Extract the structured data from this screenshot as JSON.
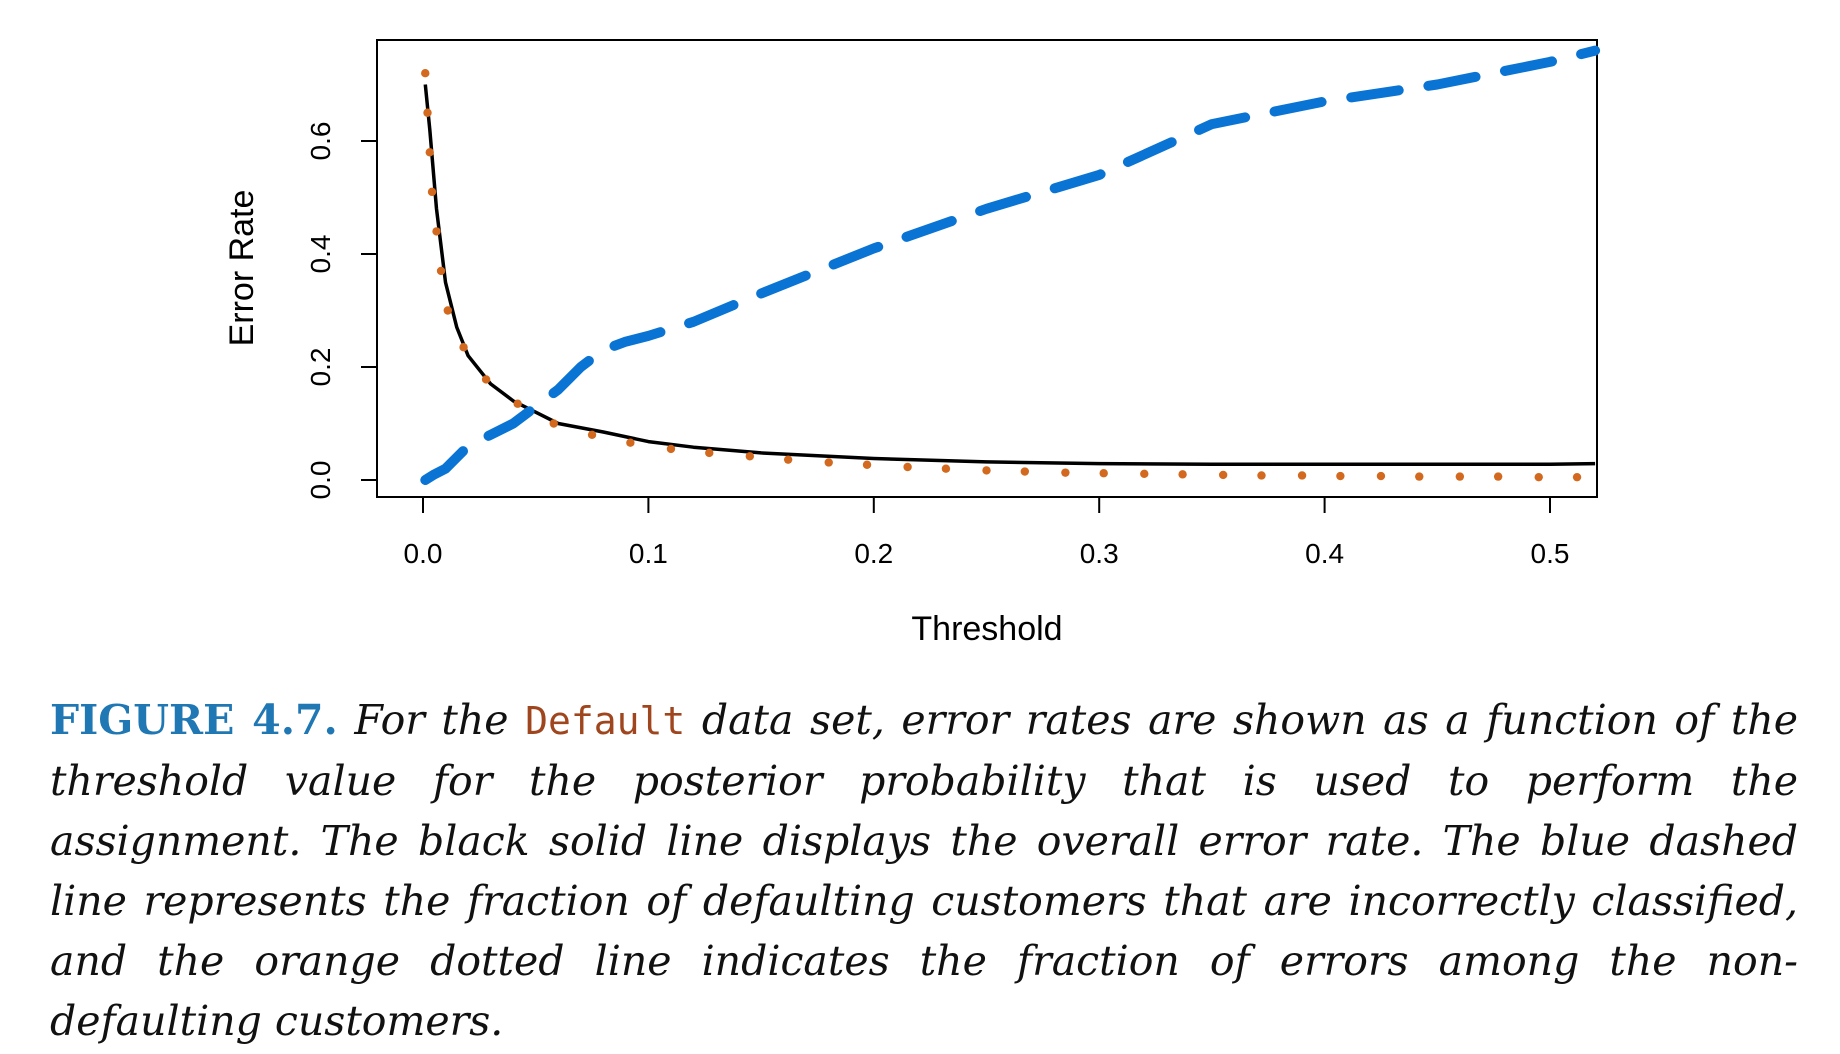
{
  "chart_data": {
    "type": "line",
    "xlabel": "Threshold",
    "ylabel": "Error Rate",
    "xlim": [
      0.0,
      0.52
    ],
    "ylim": [
      0.0,
      0.76
    ],
    "xticks": [
      "0.0",
      "0.1",
      "0.2",
      "0.3",
      "0.4",
      "0.5"
    ],
    "yticks": [
      "0.0",
      "0.2",
      "0.4",
      "0.6"
    ],
    "grid": false,
    "series": [
      {
        "style": "solid",
        "color": "#000000",
        "x": [
          0.001,
          0.003,
          0.006,
          0.01,
          0.015,
          0.02,
          0.03,
          0.04,
          0.05,
          0.06,
          0.08,
          0.1,
          0.12,
          0.15,
          0.2,
          0.25,
          0.3,
          0.35,
          0.4,
          0.45,
          0.5,
          0.52
        ],
        "y": [
          0.7,
          0.62,
          0.48,
          0.35,
          0.27,
          0.22,
          0.17,
          0.14,
          0.12,
          0.1,
          0.085,
          0.068,
          0.058,
          0.048,
          0.038,
          0.032,
          0.029,
          0.028,
          0.028,
          0.028,
          0.028,
          0.029
        ]
      },
      {
        "style": "dashed",
        "color": "#0a74d4",
        "x": [
          0.001,
          0.005,
          0.01,
          0.015,
          0.02,
          0.03,
          0.04,
          0.05,
          0.06,
          0.07,
          0.08,
          0.09,
          0.1,
          0.12,
          0.15,
          0.2,
          0.25,
          0.3,
          0.35,
          0.4,
          0.45,
          0.5,
          0.52
        ],
        "y": [
          0.0,
          0.01,
          0.02,
          0.04,
          0.06,
          0.08,
          0.1,
          0.13,
          0.16,
          0.2,
          0.23,
          0.245,
          0.255,
          0.28,
          0.33,
          0.41,
          0.48,
          0.54,
          0.63,
          0.67,
          0.7,
          0.74,
          0.76
        ]
      },
      {
        "style": "dotted",
        "color": "#d2691e",
        "x": [
          0.001,
          0.002,
          0.003,
          0.004,
          0.006,
          0.008,
          0.011,
          0.018,
          0.028,
          0.042,
          0.058,
          0.075,
          0.092,
          0.11,
          0.127,
          0.145,
          0.162,
          0.18,
          0.197,
          0.215,
          0.232,
          0.25,
          0.267,
          0.285,
          0.302,
          0.32,
          0.337,
          0.355,
          0.372,
          0.39,
          0.407,
          0.425,
          0.442,
          0.46,
          0.477,
          0.495,
          0.512
        ],
        "y": [
          0.72,
          0.65,
          0.58,
          0.51,
          0.44,
          0.37,
          0.3,
          0.235,
          0.178,
          0.135,
          0.1,
          0.08,
          0.066,
          0.055,
          0.048,
          0.042,
          0.036,
          0.031,
          0.027,
          0.023,
          0.02,
          0.017,
          0.015,
          0.013,
          0.012,
          0.011,
          0.01,
          0.009,
          0.008,
          0.008,
          0.007,
          0.007,
          0.006,
          0.006,
          0.006,
          0.005,
          0.005
        ]
      }
    ]
  },
  "caption": {
    "label": "FIGURE 4.7.",
    "text_before": " For the ",
    "code": "Default",
    "text_after": " data set, error rates are shown as a function of the threshold value for the posterior probability that is used to perform the assignment. The black solid line displays the overall error rate. The blue dashed line represents the fraction of defaulting customers that are incorrectly classified, and the orange dotted line indicates the fraction of errors among the non-defaulting customers."
  }
}
